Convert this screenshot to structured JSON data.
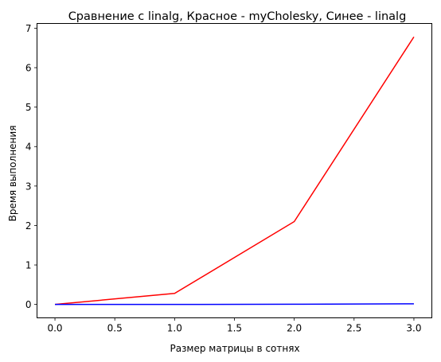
{
  "chart_data": {
    "type": "line",
    "title": "Сравнение с linalg, Красное - myCholesky, Синее - linalg",
    "xlabel": "Размер матрицы в сотнях",
    "ylabel": "Время выполнения",
    "x": [
      0,
      1,
      2,
      3
    ],
    "xlim": [
      -0.15,
      3.15
    ],
    "ylim": [
      -0.34,
      7.12
    ],
    "xticks": [
      "0.0",
      "0.5",
      "1.0",
      "1.5",
      "2.0",
      "2.5",
      "3.0"
    ],
    "yticks": [
      "0",
      "1",
      "2",
      "3",
      "4",
      "5",
      "6",
      "7"
    ],
    "grid": false,
    "series": [
      {
        "values": [
          0.0,
          0.28,
          2.1,
          6.78
        ],
        "color": "#ff0000"
      },
      {
        "values": [
          0.0,
          0.0,
          0.005,
          0.015
        ],
        "color": "#0000ff"
      }
    ]
  }
}
